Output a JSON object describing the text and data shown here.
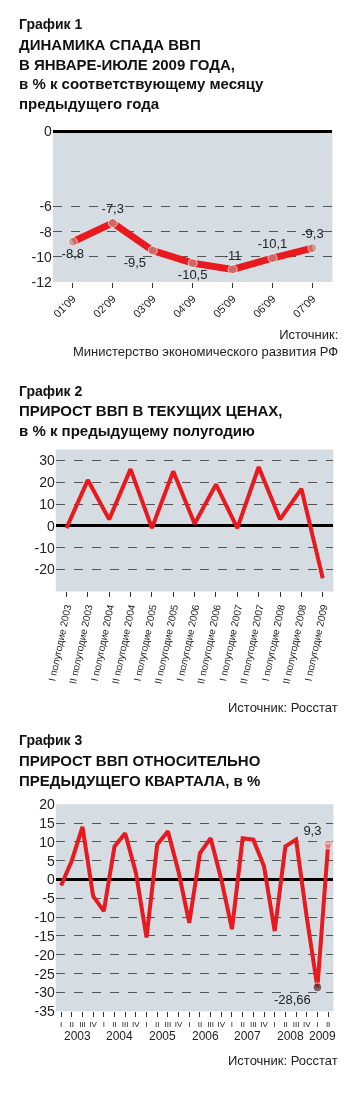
{
  "chart_data": [
    {
      "type": "line",
      "title": "График 1",
      "subtitle": "ДИНАМИКА СПАДА ВВП\nВ ЯНВАРЕ-ИЮЛЕ 2009 ГОДА,\nв % к соответствующему месяцу\nпредыдущего года",
      "categories": [
        "01'09",
        "02'09",
        "03'09",
        "04'09",
        "05'09",
        "06'09",
        "07'09"
      ],
      "series": [
        {
          "color": "#e8191f",
          "values": [
            -8.8,
            -7.3,
            -9.5,
            -10.5,
            -11,
            -10.1,
            -9.3
          ],
          "value_labels": [
            "-8,8",
            "-7,3",
            "-9,5",
            "-10,5",
            "-11",
            "-10,1",
            "-9,3"
          ],
          "colors": [
            "#c98a80",
            "#c98a80",
            "#c98a80",
            "#c98a80",
            "#c98a80",
            "#c98a80",
            "#c98a80"
          ]
        }
      ],
      "ylim": [
        -12,
        0
      ],
      "yticks": [
        0,
        -6,
        -8,
        -10,
        -12
      ],
      "grid": "y",
      "marker": "circle",
      "annotations": [
        "Источник:\nМинистерство экономического развития РФ"
      ]
    },
    {
      "type": "line",
      "title": "График 2",
      "subtitle": "ПРИРОСТ ВВП В ТЕКУЩИХ ЦЕНАХ,\nв % к предыдущему полугодию",
      "categories": [
        "I полугодие 2003",
        "II полугодие 2003",
        "I полугодие 2004",
        "II полугодие 2004",
        "I полугодие 2005",
        "II полугодие 2005",
        "I полугодие 2006",
        "II полугодие 2006",
        "I полугодие 2007",
        "II полугодие 2007",
        "I полугодие 2008",
        "II полугодие 2008",
        "I полугодие 2009"
      ],
      "series": [
        {
          "color": "#e8191f",
          "values": [
            -1,
            21,
            3,
            26,
            -1,
            25,
            1,
            19,
            -1,
            27,
            3,
            17,
            -24
          ]
        }
      ],
      "ylim": [
        -30,
        35
      ],
      "yticks": [
        -20,
        -10,
        0,
        10,
        20,
        30
      ],
      "grid": "y",
      "annotations": [
        "Источник: Росстат"
      ]
    },
    {
      "type": "line",
      "title": "График 3",
      "subtitle": "ПРИРОСТ ВВП ОТНОСИТЕЛЬНО\nПРЕДЫДУЩЕГО КВАРТАЛА, в %",
      "categories": [
        "I",
        "II",
        "III",
        "IV",
        "I",
        "II",
        "III",
        "IV",
        "I",
        "II",
        "III",
        "IV",
        "I",
        "II",
        "III",
        "IV",
        "I",
        "II",
        "III",
        "IV",
        "I",
        "II",
        "III",
        "IV",
        "I",
        "II"
      ],
      "series": [
        {
          "color": "#e8191f",
          "values": [
            -1.6,
            5,
            14,
            -4.4,
            -8.4,
            8.8,
            12.3,
            1.8,
            -15.4,
            9.3,
            12.8,
            2,
            -11.5,
            7,
            11,
            0,
            -13.2,
            11,
            10.6,
            3.5,
            -13.7,
            8.8,
            10.6,
            -10,
            -28.66,
            9.3
          ]
        },
        {
          "type": "scatter",
          "marker": "circle",
          "values": [
            null,
            null,
            null,
            null,
            null,
            null,
            null,
            null,
            null,
            null,
            null,
            null,
            null,
            null,
            null,
            null,
            null,
            null,
            null,
            null,
            null,
            null,
            null,
            null,
            -28.66,
            9.3
          ],
          "value_labels": [
            null,
            null,
            null,
            null,
            null,
            null,
            null,
            null,
            null,
            null,
            null,
            null,
            null,
            null,
            null,
            null,
            null,
            null,
            null,
            null,
            null,
            null,
            null,
            null,
            "-28,66",
            "9,3"
          ],
          "colors": [
            null,
            null,
            null,
            null,
            null,
            null,
            null,
            null,
            null,
            null,
            null,
            null,
            null,
            null,
            null,
            null,
            null,
            null,
            null,
            null,
            null,
            null,
            null,
            null,
            "#5a3030",
            "#e8a0a0"
          ]
        }
      ],
      "ylim": [
        -35,
        20
      ],
      "yticks": [
        -35,
        -30,
        -25,
        -20,
        -15,
        -10,
        -5,
        0,
        5,
        10,
        15,
        20
      ],
      "grid": "y",
      "annotations": [
        "2003",
        "2004",
        "2005",
        "2006",
        "2007",
        "2008",
        "2009",
        "Источник: Росстат"
      ]
    }
  ]
}
